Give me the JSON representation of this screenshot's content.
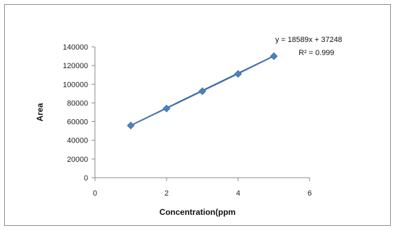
{
  "chart_data": {
    "type": "scatter",
    "title": "",
    "xlabel": "Concentration(ppm",
    "ylabel": "Area",
    "xlim": [
      0,
      6
    ],
    "ylim": [
      0,
      140000
    ],
    "x_ticks": [
      0,
      2,
      4,
      6
    ],
    "y_ticks": [
      0,
      20000,
      40000,
      60000,
      80000,
      100000,
      120000,
      140000
    ],
    "grid": false,
    "legend": "none",
    "series": [
      {
        "x": [
          1,
          2,
          3,
          4,
          5
        ],
        "y": [
          55800,
          74000,
          92500,
          111000,
          130000
        ],
        "color": "#4f81bd",
        "marker": "diamond",
        "line": true
      }
    ],
    "trendline": {
      "type": "linear",
      "slope": 18589,
      "intercept": 37248,
      "x_range": [
        1,
        5
      ],
      "color": "#1f4e79"
    },
    "annotations": {
      "equation": "y = 18589x + 37248",
      "r2_label": "R² = 0.999"
    }
  }
}
